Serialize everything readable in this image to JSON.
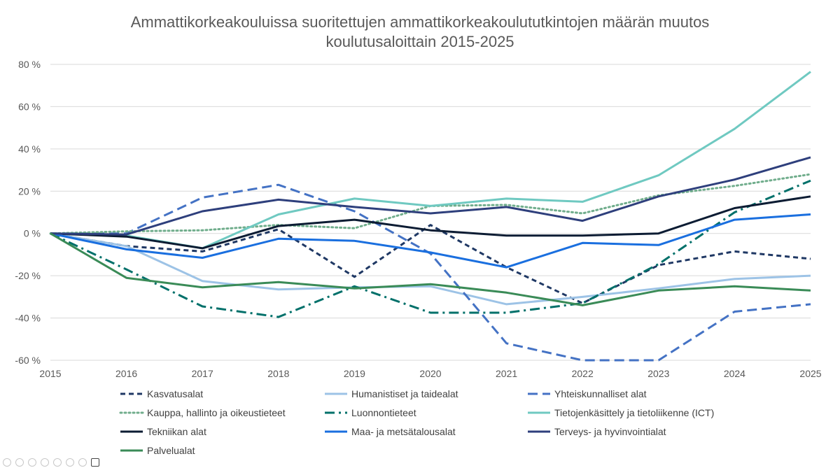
{
  "chart_data": {
    "type": "line",
    "title_lines": [
      "Ammattikorkeakouluissa suoritettujen ammattikorkeakoulututkintojen määrän muutos",
      "koulutusaloittain 2015-2025"
    ],
    "x": [
      2015,
      2016,
      2017,
      2018,
      2019,
      2020,
      2021,
      2022,
      2023,
      2024,
      2025
    ],
    "ylim": [
      -60,
      80
    ],
    "yticks": [
      80,
      60,
      40,
      20,
      0,
      -20,
      -40,
      -60
    ],
    "ytick_labels": [
      "80 %",
      "60 %",
      "40 %",
      "20 %",
      "0 %",
      "-20 %",
      "-40 %",
      "-60 %"
    ],
    "xtick_labels": [
      "2015",
      "2016",
      "2017",
      "2018",
      "2019",
      "2020",
      "2021",
      "2022",
      "2023",
      "2024",
      "2025"
    ],
    "grid": "horizontal",
    "legend_position": "bottom",
    "series": [
      {
        "name": "Kasvatusalat",
        "color": "#1f3864",
        "style": "dashed-short",
        "values": [
          0,
          -6,
          -8.5,
          2,
          -20.5,
          4,
          -16,
          -33,
          -15,
          -8.5,
          -12
        ]
      },
      {
        "name": "Humanistiset ja taidealat",
        "color": "#9dc3e6",
        "style": "solid",
        "values": [
          0,
          -6,
          -22.5,
          -26.5,
          -25.5,
          -25,
          -33.5,
          -30,
          -26,
          -21.5,
          -20
        ]
      },
      {
        "name": "Yhteiskunnalliset alat",
        "color": "#4472c4",
        "style": "dashed-long",
        "values": [
          0,
          0,
          17,
          23,
          10.5,
          -9.5,
          -52,
          -60,
          -60,
          -37,
          -33.5
        ]
      },
      {
        "name": "Kauppa, hallinto ja oikeustieteet",
        "color": "#70ad8c",
        "style": "dotted",
        "values": [
          0,
          1,
          1.5,
          4,
          2.5,
          13,
          13.5,
          9.5,
          18,
          22.5,
          28
        ]
      },
      {
        "name": "Luonnontieteet",
        "color": "#00706a",
        "style": "dashdot",
        "values": [
          0,
          -17,
          -34.5,
          -39.5,
          -25,
          -37.5,
          -37.5,
          -33,
          -14.5,
          10,
          25
        ]
      },
      {
        "name": "Tietojenkäsittely ja tietoliikenne (ICT)",
        "color": "#6fc9c1",
        "style": "solid",
        "values": [
          0,
          -1,
          -7,
          9,
          16.5,
          13,
          16.5,
          15,
          27.5,
          49.5,
          76.5
        ]
      },
      {
        "name": "Tekniikan alat",
        "color": "#0c1c33",
        "style": "solid",
        "values": [
          0,
          -1.5,
          -7,
          3.5,
          6.5,
          1.5,
          -1,
          -1,
          0,
          12,
          17.5
        ]
      },
      {
        "name": "Maa- ja metsätalousalat",
        "color": "#1a6fdf",
        "style": "solid",
        "values": [
          0,
          -7.5,
          -11.5,
          -2.5,
          -3.5,
          -9,
          -16,
          -4.5,
          -5.5,
          6.5,
          9
        ]
      },
      {
        "name": "Terveys- ja hyvinvointialat",
        "color": "#2e3f7c",
        "style": "solid",
        "values": [
          0,
          -0.5,
          10.5,
          16,
          12.5,
          9.5,
          12.5,
          6,
          17.5,
          25.5,
          36
        ]
      },
      {
        "name": "Palvelualat",
        "color": "#3a8b57",
        "style": "solid",
        "values": [
          0,
          -21,
          -25.5,
          -23,
          -26,
          -24,
          -28,
          -34,
          -27,
          -25,
          -27
        ]
      }
    ]
  }
}
